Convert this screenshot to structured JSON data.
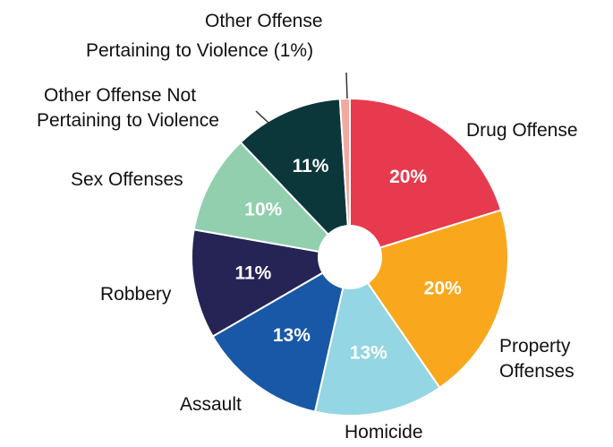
{
  "chart_data": {
    "type": "pie",
    "slices": [
      {
        "label": "Drug Offense",
        "value": 20,
        "display": "20%",
        "color": "#E83A4E",
        "text_color": "#ffffff"
      },
      {
        "label": "Property Offenses",
        "value": 20,
        "display": "20%",
        "color": "#F9A81E",
        "text_color": "#ffffff"
      },
      {
        "label": "Homicide",
        "value": 13,
        "display": "13%",
        "color": "#94D6E3",
        "text_color": "#ffffff"
      },
      {
        "label": "Assault",
        "value": 13,
        "display": "13%",
        "color": "#1858A6",
        "text_color": "#ffffff"
      },
      {
        "label": "Robbery",
        "value": 11,
        "display": "11%",
        "color": "#252455",
        "text_color": "#ffffff"
      },
      {
        "label": "Sex Offenses",
        "value": 10,
        "display": "10%",
        "color": "#92CFAE",
        "text_color": "#ffffff"
      },
      {
        "label": "Other Offense Not Pertaining to Violence",
        "value": 11,
        "display": "11%",
        "color": "#0C373A",
        "text_color": "#ffffff"
      },
      {
        "label": "Other Offense Pertaining to Violence (1%)",
        "value": 1,
        "display": "",
        "color": "#F2A9A0",
        "text_color": "#ffffff"
      }
    ],
    "donut_hole": true
  },
  "labels": {
    "drug": "Drug Offense",
    "property_1": "Property",
    "property_2": "Offenses",
    "homicide": "Homicide",
    "assault": "Assault",
    "robbery": "Robbery",
    "sex": "Sex Offenses",
    "other_nv_1": "Other Offense Not",
    "other_nv_2": "Pertaining to Violence",
    "other_v_1": "Other Offense",
    "other_v_2": "Pertaining to Violence (1%)"
  }
}
